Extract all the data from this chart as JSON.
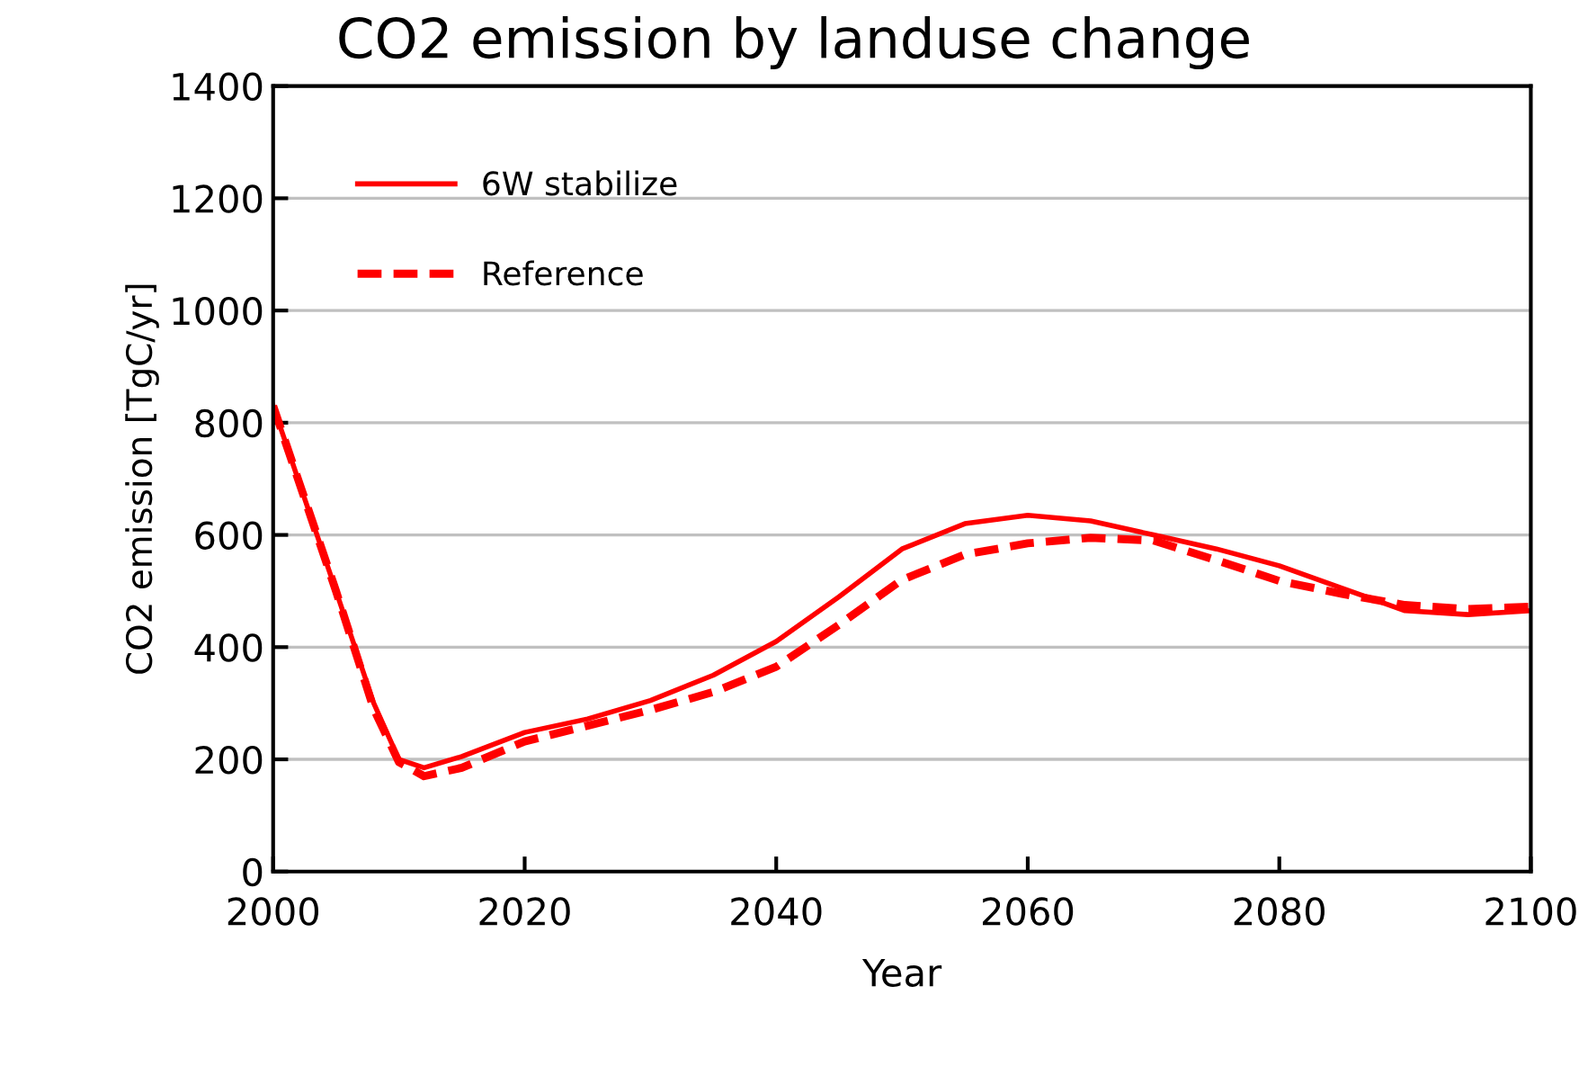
{
  "chart_data": {
    "type": "line",
    "title": "CO2 emission by landuse change",
    "xlabel": "Year",
    "ylabel": "CO2 emission [TgC/yr]",
    "x": [
      2000,
      2005,
      2008,
      2010,
      2012,
      2015,
      2020,
      2025,
      2030,
      2035,
      2040,
      2045,
      2050,
      2055,
      2060,
      2065,
      2070,
      2075,
      2080,
      2085,
      2090,
      2095,
      2100
    ],
    "series": [
      {
        "name": "6W stabilize",
        "color": "#ff0000",
        "line_style": "solid",
        "values": [
          830,
          500,
          300,
          200,
          185,
          205,
          248,
          272,
          305,
          350,
          410,
          490,
          575,
          620,
          635,
          625,
          600,
          575,
          545,
          505,
          465,
          458,
          465
        ]
      },
      {
        "name": "Reference",
        "color": "#ff0000",
        "line_style": "dashed",
        "values": [
          830,
          500,
          290,
          195,
          170,
          185,
          232,
          260,
          288,
          320,
          365,
          440,
          520,
          565,
          585,
          595,
          590,
          555,
          518,
          495,
          475,
          468,
          472
        ]
      }
    ],
    "xlim": [
      2000,
      2100
    ],
    "xticks": [
      2000,
      2020,
      2040,
      2060,
      2080,
      2100
    ],
    "ylim": [
      0,
      1400
    ],
    "yticks": [
      0,
      200,
      400,
      600,
      800,
      1000,
      1200,
      1400
    ],
    "grid": "y",
    "legend": "top left",
    "marker": "none"
  }
}
